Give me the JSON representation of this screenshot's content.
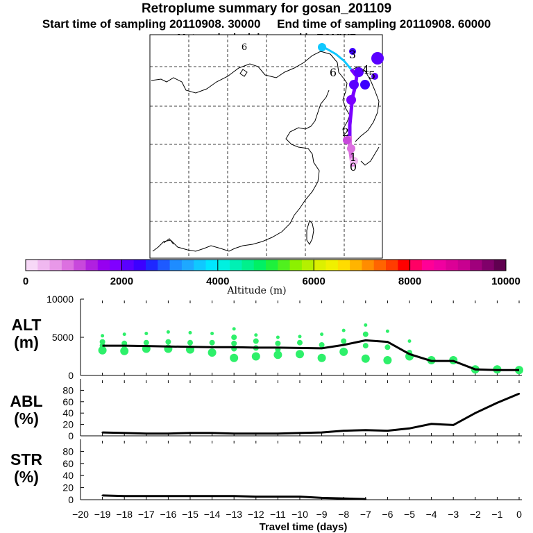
{
  "header": {
    "title": "Retroplume summary for gosan_201109",
    "start_label": "Start time of sampling 20110908. 30000",
    "end_label": "End time of sampling 20110908. 60000",
    "met_label": "Meteorological data used is ECMWF"
  },
  "map": {
    "markers": [
      "0",
      "1",
      "2",
      "3",
      "4",
      "5",
      "6"
    ]
  },
  "colorbar": {
    "ticks": [
      "0",
      "2000",
      "4000",
      "6000",
      "8000",
      "10000"
    ],
    "label": "Altitude (m)",
    "colors": [
      "#f7d8f7",
      "#f0b8f0",
      "#e898e8",
      "#dc70e0",
      "#c848dc",
      "#b020e0",
      "#9600f0",
      "#8000ff",
      "#5a00ff",
      "#3c00ff",
      "#1e28ff",
      "#1e5aff",
      "#1e8cff",
      "#1ea8ff",
      "#10c8ff",
      "#00e6ff",
      "#00f0e0",
      "#00f0b4",
      "#00f08c",
      "#00f064",
      "#1ef03c",
      "#50f01e",
      "#8cf000",
      "#b4f000",
      "#dcf000",
      "#f0f000",
      "#ffdc00",
      "#ffb400",
      "#ff8c00",
      "#ff6400",
      "#ff3c00",
      "#ff0000",
      "#ff0064",
      "#ff0096",
      "#f000a0",
      "#dc0096",
      "#c80090",
      "#a0007c",
      "#80006a",
      "#600050"
    ]
  },
  "chart_data": [
    {
      "type": "line",
      "panel": "ALT",
      "ylabel": "ALT (m)",
      "ylim": [
        0,
        10000
      ],
      "yticks": [
        "10000",
        "5000",
        "0"
      ],
      "x": [
        -19,
        -18,
        -17,
        -16,
        -15,
        -14,
        -13,
        -12,
        -11,
        -10,
        -9,
        -8,
        -7,
        -6,
        -5,
        -4,
        -3,
        -2,
        -1,
        0
      ],
      "values": [
        3900,
        3900,
        3850,
        3800,
        3750,
        3700,
        3700,
        3650,
        3650,
        3600,
        3550,
        4000,
        4600,
        4400,
        2800,
        1900,
        1900,
        800,
        700,
        700
      ],
      "bubbles_altitude_m": [
        [
          5200,
          4400,
          3900,
          3300
        ],
        [
          5400,
          4200,
          3500,
          3200
        ],
        [
          5500,
          4300,
          3500
        ],
        [
          5700,
          4400,
          3500
        ],
        [
          5600,
          4300,
          3400
        ],
        [
          5500,
          4300,
          3000
        ],
        [
          6100,
          5000,
          4200,
          3500,
          2300
        ],
        [
          5300,
          4500,
          3600,
          2500
        ],
        [
          5000,
          4200,
          3400,
          2700
        ],
        [
          5100,
          4300,
          2800
        ],
        [
          5400,
          4000,
          2300
        ],
        [
          5900,
          4500,
          3100
        ],
        [
          6600,
          5400,
          3900,
          2200
        ],
        [
          5800,
          3700,
          2000
        ],
        [
          4500,
          3000,
          2500
        ],
        [
          2000
        ],
        [
          2300,
          2000
        ],
        [
          1100,
          800
        ],
        [
          1100,
          800
        ],
        [
          700
        ]
      ]
    },
    {
      "type": "line",
      "panel": "ABL",
      "ylabel": "ABL (%)",
      "ylim": [
        0,
        100
      ],
      "yticks": [
        "0",
        "20",
        "40",
        "60",
        "80"
      ],
      "x": [
        -19,
        -18,
        -17,
        -16,
        -15,
        -14,
        -13,
        -12,
        -11,
        -10,
        -9,
        -8,
        -7,
        -6,
        -5,
        -4,
        -3,
        -2,
        -1,
        0
      ],
      "values": [
        6,
        5,
        4,
        4,
        5,
        5,
        4,
        4,
        4,
        5,
        6,
        9,
        10,
        9,
        13,
        21,
        19,
        40,
        58,
        74
      ]
    },
    {
      "type": "line",
      "panel": "STR",
      "ylabel": "STR (%)",
      "ylim": [
        0,
        100
      ],
      "yticks": [
        "0",
        "20",
        "40",
        "60",
        "80"
      ],
      "x": [
        -19,
        -18,
        -17,
        -16,
        -15,
        -14,
        -13,
        -12,
        -11,
        -10,
        -9,
        -8,
        -7
      ],
      "values": [
        7,
        6,
        6,
        6,
        6,
        6,
        6,
        5,
        5,
        5,
        3,
        2,
        1
      ]
    }
  ],
  "axes": {
    "panel_labels": {
      "alt_1": "ALT",
      "alt_2": "(m)",
      "abl_1": "ABL",
      "abl_2": "(%)",
      "str_1": "STR",
      "str_2": "(%)"
    },
    "xticks": [
      "−20",
      "−19",
      "−18",
      "−17",
      "−16",
      "−15",
      "−14",
      "−13",
      "−12",
      "−11",
      "−10",
      "−9",
      "−8",
      "−7",
      "−6",
      "−5",
      "−4",
      "−3",
      "−2",
      "−1",
      "0"
    ],
    "xlabel": "Travel time (days)",
    "alt_bubble_color": "#2ef06a"
  }
}
